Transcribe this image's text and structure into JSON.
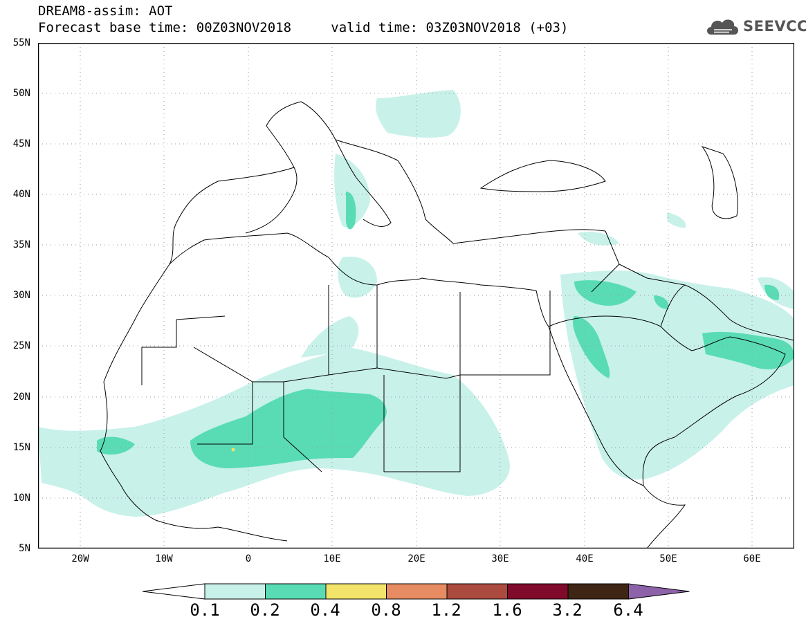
{
  "header": {
    "title_line1": "DREAM8-assim: AOT",
    "base_time": "Forecast base time: 00Z03NOV2018",
    "valid_time": "valid time: 03Z03NOV2018 (+03)"
  },
  "logo": {
    "text": "SEEVCCC",
    "icon": "cloud-icon"
  },
  "map": {
    "projection": "equirectangular",
    "lon_range": [
      -25,
      65
    ],
    "lat_range": [
      5,
      55
    ],
    "gridlines": "dotted",
    "lat_labels": [
      "55N",
      "50N",
      "45N",
      "40N",
      "35N",
      "30N",
      "25N",
      "20N",
      "15N",
      "10N",
      "5N"
    ],
    "lon_labels": [
      "20W",
      "10W",
      "0",
      "10E",
      "20E",
      "30E",
      "40E",
      "50E",
      "60E"
    ],
    "field": "Aerosol optical thickness (AOT)",
    "colors": {
      "land_outline": "#000000",
      "grid": "#9a9a9a"
    }
  },
  "colorbar": {
    "levels": [
      "0.1",
      "0.2",
      "0.4",
      "0.8",
      "1.2",
      "1.6",
      "3.2",
      "6.4"
    ],
    "colors": [
      "#ffffff",
      "#c8f1ea",
      "#59dcb4",
      "#f2e46a",
      "#e68b62",
      "#ab4a3e",
      "#7f0a2a",
      "#3f2614",
      "#8d62a8"
    ],
    "extends": "both"
  }
}
